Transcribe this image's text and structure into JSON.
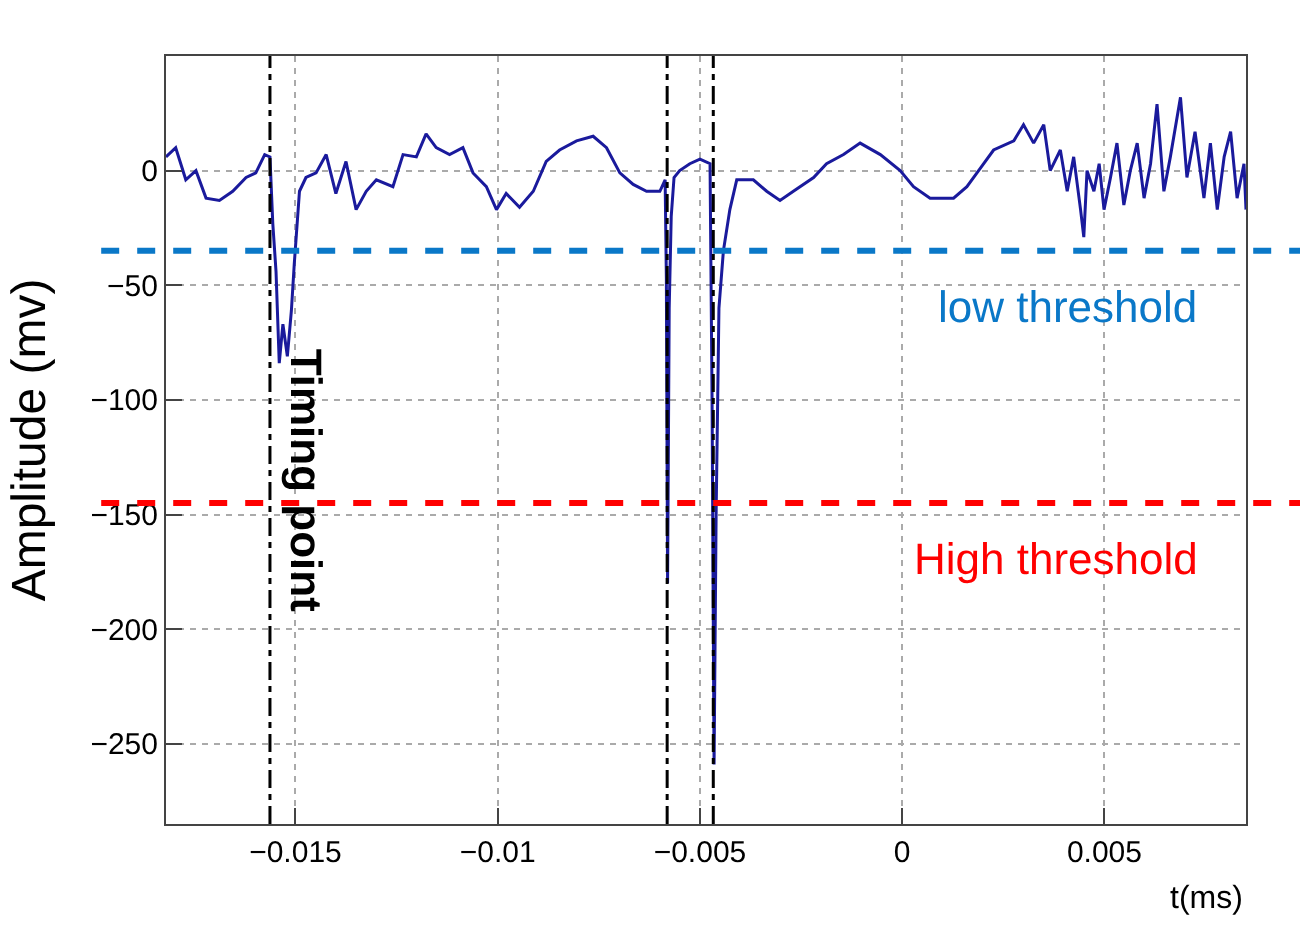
{
  "chart_data": {
    "type": "line",
    "xlabel": "t(ms)",
    "ylabel": "Amplitude (mv)",
    "xlim": [
      -0.0182,
      0.0085
    ],
    "ylim": [
      -285,
      50
    ],
    "xticks": [
      -0.015,
      -0.01,
      -0.005,
      0,
      0.005
    ],
    "yticks": [
      -250,
      -200,
      -150,
      -100,
      -50,
      0
    ],
    "grid": true,
    "series": [
      {
        "color": "#1a1a9c",
        "x": [
          -0.0182,
          -0.01796,
          -0.01771,
          -0.01746,
          -0.01721,
          -0.01688,
          -0.01655,
          -0.01622,
          -0.01598,
          -0.01576,
          -0.01563,
          -0.01556,
          -0.01548,
          -0.0154,
          -0.01531,
          -0.0152,
          -0.0151,
          -0.01503,
          -0.0149,
          -0.01474,
          -0.01449,
          -0.01424,
          -0.014,
          -0.01375,
          -0.0135,
          -0.01325,
          -0.013,
          -0.01259,
          -0.01234,
          -0.01201,
          -0.01177,
          -0.01152,
          -0.01119,
          -0.01086,
          -0.01061,
          -0.01028,
          -0.01003,
          -0.00979,
          -0.00946,
          -0.00912,
          -0.0088,
          -0.00847,
          -0.00805,
          -0.00764,
          -0.00731,
          -0.00698,
          -0.00665,
          -0.00632,
          -0.00599,
          -0.00586,
          -0.00583,
          -0.0058,
          -0.00576,
          -0.00571,
          -0.00564,
          -0.0055,
          -0.00525,
          -0.005,
          -0.00475,
          -0.0047,
          -0.00465,
          -0.0046,
          -0.00453,
          -0.00442,
          -0.00426,
          -0.00409,
          -0.00368,
          -0.00335,
          -0.00302,
          -0.00269,
          -0.00219,
          -0.00187,
          -0.00145,
          -0.00104,
          -0.00054,
          -5e-05,
          0.00028,
          0.00069,
          0.00127,
          0.0016,
          0.00193,
          0.00226,
          0.00276,
          0.003,
          0.00325,
          0.0035,
          0.00366,
          0.00391,
          0.00408,
          0.00424,
          0.00441,
          0.00449,
          0.00457,
          0.00474,
          0.00487,
          0.00499,
          0.00515,
          0.00531,
          0.00548,
          0.00564,
          0.00581,
          0.00598,
          0.00614,
          0.0063,
          0.00647,
          0.00663,
          0.00688,
          0.00704,
          0.00724,
          0.00746,
          0.00762,
          0.00779,
          0.00796,
          0.00812,
          0.00828,
          0.00845,
          0.0085
        ],
        "values": [
          6,
          10,
          -4,
          0,
          -12,
          -13,
          -9,
          -3,
          -1,
          7,
          6,
          -23,
          -44,
          -84,
          -67,
          -81,
          -61,
          -41,
          -9,
          -3,
          -1,
          7,
          -10,
          4,
          -17,
          -9,
          -4,
          -7,
          7,
          6,
          16,
          10,
          7,
          10,
          -1,
          -7,
          -17,
          -10,
          -16,
          -9,
          4,
          9,
          13,
          15,
          10,
          -1,
          -6,
          -9,
          -9,
          -4,
          -47,
          -180,
          -60,
          -20,
          -3,
          0,
          3,
          5,
          3,
          -100,
          -259,
          -150,
          -60,
          -35,
          -17,
          -4,
          -4,
          -9,
          -13,
          -9,
          -3,
          3,
          7,
          12,
          7,
          0,
          -7,
          -12,
          -12,
          -7,
          1,
          9,
          13,
          20,
          12,
          20,
          0,
          9,
          -9,
          6,
          -17,
          -29,
          0,
          -9,
          3,
          -17,
          -3,
          12,
          -15,
          0,
          12,
          -12,
          3,
          29,
          -9,
          6,
          32,
          -3,
          17,
          -12,
          12,
          -17,
          6,
          17,
          -12,
          3,
          -17
        ]
      }
    ],
    "ref_lines": [
      {
        "axis": "y",
        "value": -35,
        "label": "low threshold",
        "color": "#0a78c8",
        "line_style": "dashed"
      },
      {
        "axis": "y",
        "value": -145,
        "label": "High threshold",
        "color": "#ff0000",
        "line_style": "dashed"
      },
      {
        "axis": "x",
        "value": -0.01563,
        "label": "Timing point",
        "color": "#000000",
        "line_style": "dashdot"
      },
      {
        "axis": "x",
        "value": -0.00581,
        "label": null,
        "color": "#000000",
        "line_style": "dashdot"
      },
      {
        "axis": "x",
        "value": -0.00467,
        "label": null,
        "color": "#000000",
        "line_style": "dashdot"
      }
    ]
  }
}
